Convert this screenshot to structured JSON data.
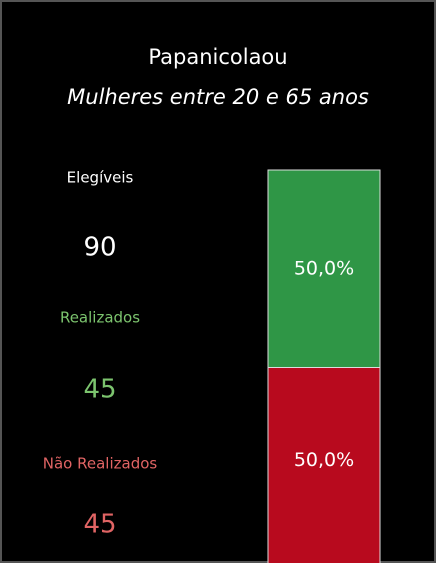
{
  "chart_data": {
    "type": "stacked-bar",
    "title": "Papanicolaou",
    "subtitle": "Mulheres entre 20 e 65 anos",
    "kpis": [
      {
        "label": "Elegíveis",
        "value": 90,
        "color": "#ffffff"
      },
      {
        "label": "Realizados",
        "value": 45,
        "color": "#7cc46e"
      },
      {
        "label": "Não Realizados",
        "value": 45,
        "color": "#e06464"
      }
    ],
    "values": [
      50,
      50
    ],
    "value_labels": [
      "50,0%",
      "50,0%"
    ],
    "colors": [
      "#b80a1e",
      "#2f9646"
    ],
    "ylim": [
      0,
      100
    ]
  }
}
